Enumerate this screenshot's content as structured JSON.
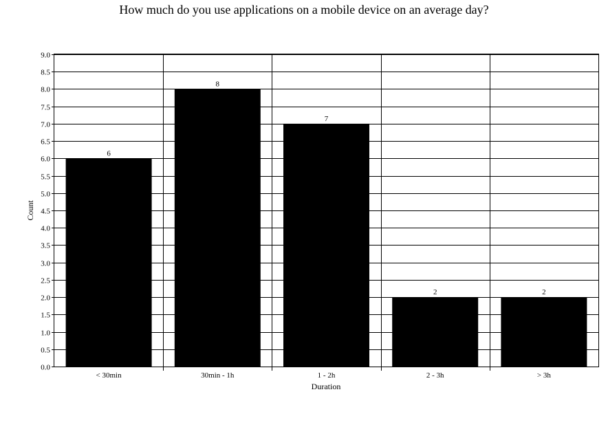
{
  "chart_data": {
    "type": "bar",
    "title": "How much do you use applications on a mobile device on an average day?",
    "xlabel": "Duration",
    "ylabel": "Count",
    "categories": [
      "< 30min",
      "30min - 1h",
      "1 - 2h",
      "2 - 3h",
      "> 3h"
    ],
    "values": [
      6,
      8,
      7,
      2,
      2
    ],
    "data_labels": [
      "6",
      "8",
      "7",
      "2",
      "2"
    ],
    "ylim": [
      0,
      9
    ],
    "ytick_step": 0.5,
    "yticks": [
      "0.0",
      "0.5",
      "1.0",
      "1.5",
      "2.0",
      "2.5",
      "3.0",
      "3.5",
      "4.0",
      "4.5",
      "5.0",
      "5.5",
      "6.0",
      "6.5",
      "7.0",
      "7.5",
      "8.0",
      "8.5",
      "9.0"
    ],
    "grid": true,
    "legend": "none",
    "bar_color": "#000000"
  }
}
